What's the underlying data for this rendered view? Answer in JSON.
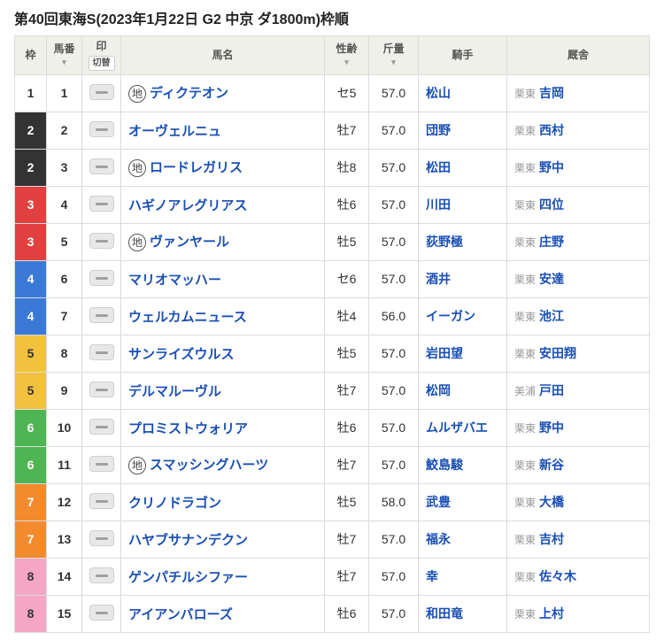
{
  "title": "第40回東海S(2023年1月22日 G2 中京 ダ1800m)枠順",
  "headers": {
    "waku": "枠",
    "umaban": "馬番",
    "mark": "印",
    "mark_toggle": "切替",
    "name": "馬名",
    "sexage": "性齢",
    "weight": "斤量",
    "jockey": "騎手",
    "stable": "厩舎"
  },
  "waku_colors": {
    "1": {
      "bg": "#ffffff",
      "fg": "#333333"
    },
    "2": {
      "bg": "#333333",
      "fg": "#ffffff"
    },
    "3": {
      "bg": "#e14040",
      "fg": "#ffffff"
    },
    "4": {
      "bg": "#3b79d6",
      "fg": "#ffffff"
    },
    "5": {
      "bg": "#f2c23e",
      "fg": "#333333"
    },
    "6": {
      "bg": "#4fb553",
      "fg": "#ffffff"
    },
    "7": {
      "bg": "#f28a2e",
      "fg": "#ffffff"
    },
    "8": {
      "bg": "#f5a6c4",
      "fg": "#333333"
    }
  },
  "rows": [
    {
      "waku": "1",
      "uma": "1",
      "badge": "地",
      "name": "ディクテオン",
      "sexage": "セ5",
      "wt": "57.0",
      "jockey": "松山",
      "region": "栗東",
      "stable": "吉岡"
    },
    {
      "waku": "2",
      "uma": "2",
      "badge": "",
      "name": "オーヴェルニュ",
      "sexage": "牡7",
      "wt": "57.0",
      "jockey": "団野",
      "region": "栗東",
      "stable": "西村"
    },
    {
      "waku": "2",
      "uma": "3",
      "badge": "地",
      "name": "ロードレガリス",
      "sexage": "牡8",
      "wt": "57.0",
      "jockey": "松田",
      "region": "栗東",
      "stable": "野中"
    },
    {
      "waku": "3",
      "uma": "4",
      "badge": "",
      "name": "ハギノアレグリアス",
      "sexage": "牡6",
      "wt": "57.0",
      "jockey": "川田",
      "region": "栗東",
      "stable": "四位"
    },
    {
      "waku": "3",
      "uma": "5",
      "badge": "地",
      "name": "ヴァンヤール",
      "sexage": "牡5",
      "wt": "57.0",
      "jockey": "荻野極",
      "region": "栗東",
      "stable": "庄野"
    },
    {
      "waku": "4",
      "uma": "6",
      "badge": "",
      "name": "マリオマッハー",
      "sexage": "セ6",
      "wt": "57.0",
      "jockey": "酒井",
      "region": "栗東",
      "stable": "安達"
    },
    {
      "waku": "4",
      "uma": "7",
      "badge": "",
      "name": "ウェルカムニュース",
      "sexage": "牡4",
      "wt": "56.0",
      "jockey": "イーガン",
      "region": "栗東",
      "stable": "池江"
    },
    {
      "waku": "5",
      "uma": "8",
      "badge": "",
      "name": "サンライズウルス",
      "sexage": "牡5",
      "wt": "57.0",
      "jockey": "岩田望",
      "region": "栗東",
      "stable": "安田翔"
    },
    {
      "waku": "5",
      "uma": "9",
      "badge": "",
      "name": "デルマルーヴル",
      "sexage": "牡7",
      "wt": "57.0",
      "jockey": "松岡",
      "region": "美浦",
      "stable": "戸田"
    },
    {
      "waku": "6",
      "uma": "10",
      "badge": "",
      "name": "プロミストウォリア",
      "sexage": "牡6",
      "wt": "57.0",
      "jockey": "ムルザバエ",
      "region": "栗東",
      "stable": "野中"
    },
    {
      "waku": "6",
      "uma": "11",
      "badge": "地",
      "name": "スマッシングハーツ",
      "sexage": "牡7",
      "wt": "57.0",
      "jockey": "鮫島駿",
      "region": "栗東",
      "stable": "新谷"
    },
    {
      "waku": "7",
      "uma": "12",
      "badge": "",
      "name": "クリノドラゴン",
      "sexage": "牡5",
      "wt": "58.0",
      "jockey": "武豊",
      "region": "栗東",
      "stable": "大橋"
    },
    {
      "waku": "7",
      "uma": "13",
      "badge": "",
      "name": "ハヤブサナンデクン",
      "sexage": "牡7",
      "wt": "57.0",
      "jockey": "福永",
      "region": "栗東",
      "stable": "吉村"
    },
    {
      "waku": "8",
      "uma": "14",
      "badge": "",
      "name": "ゲンパチルシファー",
      "sexage": "牡7",
      "wt": "57.0",
      "jockey": "幸",
      "region": "栗東",
      "stable": "佐々木"
    },
    {
      "waku": "8",
      "uma": "15",
      "badge": "",
      "name": "アイアンバローズ",
      "sexage": "牡6",
      "wt": "57.0",
      "jockey": "和田竜",
      "region": "栗東",
      "stable": "上村"
    }
  ]
}
